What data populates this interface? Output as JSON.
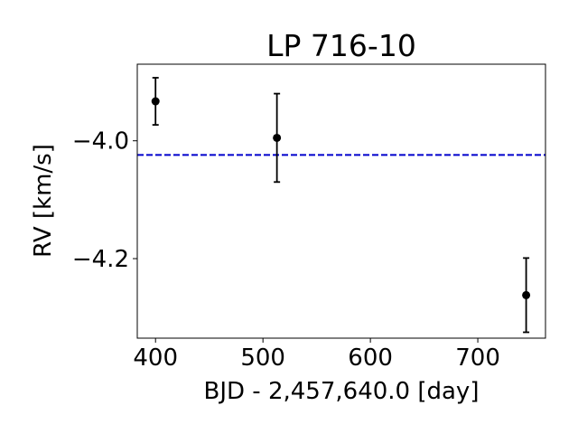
{
  "chart_data": {
    "type": "scatter",
    "title": "LP 716-10",
    "xlabel": "BJD - 2,457,640.0 [day]",
    "ylabel": "RV [km/s]",
    "xlim": [
      383,
      763
    ],
    "ylim": [
      -4.335,
      -3.87
    ],
    "xticks": [
      400,
      500,
      600,
      700
    ],
    "xtick_labels": [
      "400",
      "500",
      "600",
      "700"
    ],
    "yticks": [
      -4.0,
      -4.2
    ],
    "ytick_labels": [
      "−4.0",
      "−4.2"
    ],
    "grid": false,
    "series": [
      {
        "marker": "circle",
        "color": "#000000",
        "points": [
          {
            "x": 400,
            "y": -3.933,
            "yerr": 0.04
          },
          {
            "x": 513,
            "y": -3.995,
            "yerr": 0.075
          },
          {
            "x": 745,
            "y": -4.262,
            "yerr": 0.063
          }
        ]
      }
    ],
    "reference_lines": [
      {
        "orientation": "horizontal",
        "y": -4.024,
        "color": "#0000cc",
        "style": "dashed"
      }
    ]
  }
}
